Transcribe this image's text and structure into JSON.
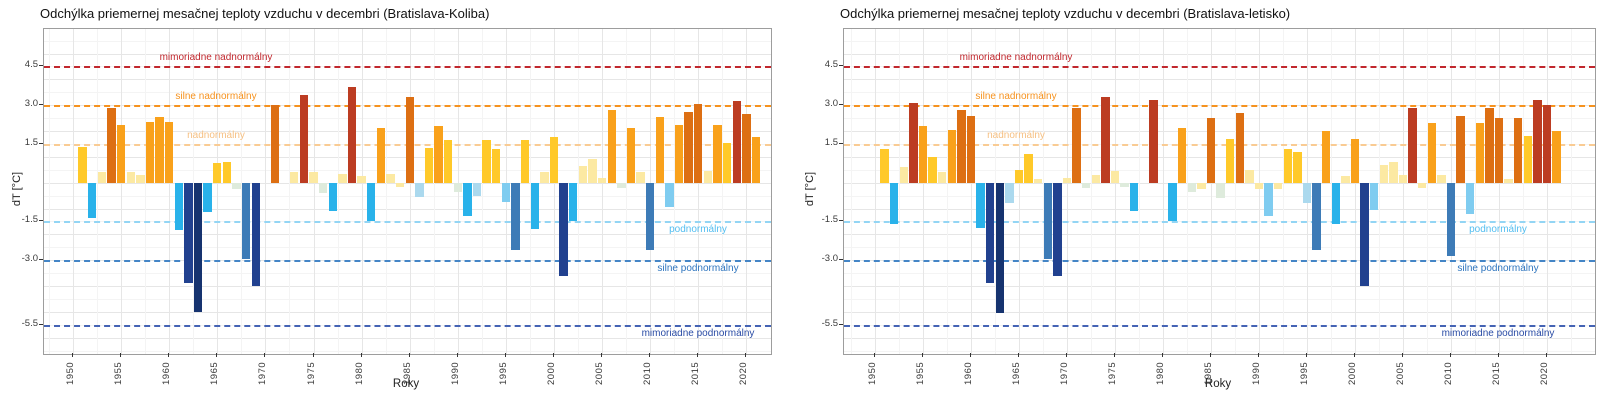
{
  "page": {
    "background": "#ffffff"
  },
  "colors": {
    "bar_classes": {
      "paleyellow": "#FCE9A2",
      "gold": "#FFC929",
      "amber": "#F9A11B",
      "darkorange": "#DD6F13",
      "darkred": "#BC3C22",
      "palegreen": "#DEEBDC",
      "paleblue": "#ABD9EE",
      "lightblue": "#7FCCF0",
      "cyan": "#29B2EA",
      "steelblue": "#3D7BB7",
      "navy": "#21418F",
      "navydark": "#16336F"
    },
    "grid_major": "#E6E6E6",
    "grid_minor": "#F4F4F4",
    "panel_border": "#9d9d9d",
    "axis_text": "#3a3a3a",
    "title_text": "#111111"
  },
  "thresholds": [
    {
      "value": 4.5,
      "label": "mimoriadne nadnormálny",
      "line_color": "#C1272D",
      "text_color": "#C1272D",
      "side": "above"
    },
    {
      "value": 3.0,
      "label": "silne nadnormálny",
      "line_color": "#F6921E",
      "text_color": "#F6921E",
      "side": "above"
    },
    {
      "value": 1.5,
      "label": "nadnormálny",
      "line_color": "#F9CB93",
      "text_color": "#F6C083",
      "side": "above"
    },
    {
      "value": -1.5,
      "label": "podnormálny",
      "line_color": "#93D5F4",
      "text_color": "#54BEF0",
      "side": "below"
    },
    {
      "value": -3.0,
      "label": "silne podnormálny",
      "line_color": "#4485C6",
      "text_color": "#2D74BE",
      "side": "below"
    },
    {
      "value": -5.5,
      "label": "mimoriadne podnormálny",
      "line_color": "#4463B4",
      "text_color": "#2A4CA5",
      "side": "below"
    }
  ],
  "chart_data": [
    {
      "type": "bar",
      "station": "Bratislava-Koliba",
      "title": "Odchýlka priemernej mesačnej teploty vzduchu v decembri (Bratislava-Koliba)",
      "xlabel": "Roky",
      "ylabel": "dT [°C]",
      "x_ticks": [
        1950,
        1955,
        1960,
        1965,
        1970,
        1975,
        1980,
        1985,
        1990,
        1995,
        2000,
        2005,
        2010,
        2015,
        2020
      ],
      "y_ticks": [
        "4.5",
        "3.0",
        "1.5",
        "-1.5",
        "-3.0",
        "-5.5"
      ],
      "y_tick_values": [
        4.5,
        3.0,
        1.5,
        -1.5,
        -3.0,
        -5.5
      ],
      "ylim": [
        -6.6,
        6.0
      ],
      "grid": true,
      "years": [
        1951,
        1952,
        1953,
        1954,
        1955,
        1956,
        1957,
        1958,
        1959,
        1960,
        1961,
        1962,
        1963,
        1964,
        1965,
        1966,
        1967,
        1968,
        1969,
        1970,
        1971,
        1972,
        1973,
        1974,
        1975,
        1976,
        1977,
        1978,
        1979,
        1980,
        1981,
        1982,
        1983,
        1984,
        1985,
        1986,
        1987,
        1988,
        1989,
        1990,
        1991,
        1992,
        1993,
        1994,
        1995,
        1996,
        1997,
        1998,
        1999,
        2000,
        2001,
        2002,
        2003,
        2004,
        2005,
        2006,
        2007,
        2008,
        2009,
        2010,
        2011,
        2012,
        2013,
        2014,
        2015,
        2016,
        2017,
        2018,
        2019,
        2020,
        2021
      ],
      "values": [
        1.4,
        -1.35,
        0.4,
        2.9,
        2.25,
        0.4,
        0.3,
        2.35,
        2.55,
        2.35,
        -1.85,
        -3.9,
        -5.0,
        -1.15,
        0.75,
        0.8,
        -0.25,
        -2.95,
        -4.0,
        0,
        3.0,
        0,
        0.4,
        3.4,
        0.4,
        -0.4,
        -1.1,
        0.35,
        3.7,
        0.25,
        -1.5,
        2.1,
        0.35,
        -0.15,
        3.3,
        -0.55,
        1.35,
        2.2,
        1.65,
        -0.35,
        -1.3,
        -0.5,
        1.65,
        1.3,
        -0.75,
        -2.6,
        1.65,
        -1.8,
        0.4,
        1.75,
        -3.6,
        -1.5,
        0.65,
        0.9,
        0.2,
        2.8,
        -0.2,
        2.1,
        0.4,
        -2.6,
        2.55,
        -0.95,
        2.25,
        2.75,
        3.05,
        0.45,
        2.25,
        1.55,
        3.15,
        2.65,
        1.75
      ],
      "bar_classes": [
        "gold",
        "cyan",
        "paleyellow",
        "darkorange",
        "amber",
        "paleyellow",
        "paleyellow",
        "amber",
        "amber",
        "amber",
        "cyan",
        "navy",
        "navydark",
        "cyan",
        "gold",
        "gold",
        "palegreen",
        "steelblue",
        "navy",
        "none",
        "darkorange",
        "none",
        "paleyellow",
        "darkred",
        "paleyellow",
        "palegreen",
        "cyan",
        "paleyellow",
        "darkred",
        "paleyellow",
        "cyan",
        "amber",
        "paleyellow",
        "paleyellow",
        "darkorange",
        "paleblue",
        "gold",
        "amber",
        "gold",
        "palegreen",
        "cyan",
        "paleblue",
        "gold",
        "gold",
        "lightblue",
        "steelblue",
        "gold",
        "cyan",
        "paleyellow",
        "gold",
        "navy",
        "cyan",
        "paleyellow",
        "paleyellow",
        "paleyellow",
        "amber",
        "palegreen",
        "amber",
        "paleyellow",
        "steelblue",
        "amber",
        "lightblue",
        "amber",
        "darkorange",
        "darkorange",
        "paleyellow",
        "amber",
        "gold",
        "darkred",
        "darkorange",
        "amber"
      ]
    },
    {
      "type": "bar",
      "station": "Bratislava-letisko",
      "title": "Odchýlka priemernej mesačnej teploty vzduchu v decembri (Bratislava-letisko)",
      "xlabel": "Roky",
      "ylabel": "dT [°C]",
      "x_ticks": [
        1950,
        1955,
        1960,
        1965,
        1970,
        1975,
        1980,
        1985,
        1990,
        1995,
        2000,
        2005,
        2010,
        2015,
        2020
      ],
      "y_ticks": [
        "4.5",
        "3.0",
        "1.5",
        "-1.5",
        "-3.0",
        "-5.5"
      ],
      "y_tick_values": [
        4.5,
        3.0,
        1.5,
        -1.5,
        -3.0,
        -5.5
      ],
      "ylim": [
        -6.6,
        6.0
      ],
      "grid": true,
      "years": [
        1951,
        1952,
        1953,
        1954,
        1955,
        1956,
        1957,
        1958,
        1959,
        1960,
        1961,
        1962,
        1963,
        1964,
        1965,
        1966,
        1967,
        1968,
        1969,
        1970,
        1971,
        1972,
        1973,
        1974,
        1975,
        1976,
        1977,
        1978,
        1979,
        1980,
        1981,
        1982,
        1983,
        1984,
        1985,
        1986,
        1987,
        1988,
        1989,
        1990,
        1991,
        1992,
        1993,
        1994,
        1995,
        1996,
        1997,
        1998,
        1999,
        2000,
        2001,
        2002,
        2003,
        2004,
        2005,
        2006,
        2007,
        2008,
        2009,
        2010,
        2011,
        2012,
        2013,
        2014,
        2015,
        2016,
        2017,
        2018,
        2019,
        2020,
        2021
      ],
      "values": [
        1.3,
        -1.6,
        0.6,
        3.1,
        2.2,
        1.0,
        0.4,
        2.05,
        2.8,
        2.6,
        -1.75,
        -3.9,
        -5.05,
        -0.8,
        0.5,
        1.1,
        0.15,
        -2.95,
        -3.6,
        0.2,
        2.9,
        -0.2,
        0.3,
        3.3,
        0.45,
        -0.15,
        -1.1,
        0,
        3.2,
        0,
        -1.5,
        2.1,
        -0.35,
        -0.25,
        2.5,
        -0.6,
        1.7,
        2.7,
        0.5,
        -0.25,
        -1.3,
        -0.25,
        1.3,
        1.2,
        -0.8,
        -2.6,
        2.0,
        -1.6,
        0.25,
        1.7,
        -4.0,
        -1.05,
        0.7,
        0.8,
        0.3,
        2.9,
        -0.2,
        2.3,
        0.3,
        -2.85,
        2.6,
        -1.2,
        2.3,
        2.9,
        2.5,
        0.15,
        2.5,
        1.8,
        3.2,
        3.0,
        2.0
      ],
      "bar_classes": [
        "gold",
        "cyan",
        "paleyellow",
        "darkred",
        "amber",
        "gold",
        "paleyellow",
        "amber",
        "darkorange",
        "darkorange",
        "cyan",
        "navy",
        "navydark",
        "paleblue",
        "gold",
        "gold",
        "paleyellow",
        "steelblue",
        "navy",
        "paleyellow",
        "darkorange",
        "palegreen",
        "paleyellow",
        "darkred",
        "paleyellow",
        "palegreen",
        "cyan",
        "none",
        "darkred",
        "none",
        "cyan",
        "amber",
        "palegreen",
        "paleyellow",
        "darkorange",
        "palegreen",
        "gold",
        "darkorange",
        "paleyellow",
        "paleyellow",
        "lightblue",
        "paleyellow",
        "gold",
        "gold",
        "paleblue",
        "steelblue",
        "amber",
        "cyan",
        "paleyellow",
        "amber",
        "navy",
        "lightblue",
        "paleyellow",
        "paleyellow",
        "paleyellow",
        "darkred",
        "paleyellow",
        "amber",
        "paleyellow",
        "steelblue",
        "darkorange",
        "lightblue",
        "amber",
        "darkorange",
        "darkorange",
        "paleyellow",
        "darkorange",
        "gold",
        "darkred",
        "darkred",
        "amber"
      ]
    }
  ]
}
